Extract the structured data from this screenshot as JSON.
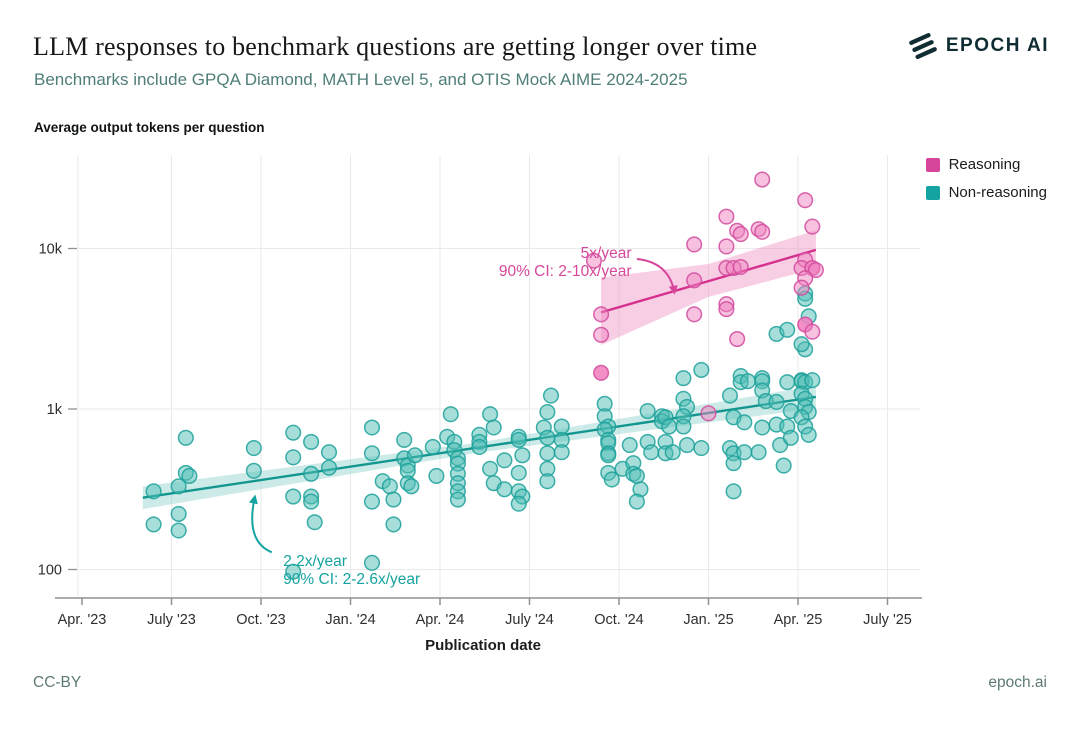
{
  "page": {
    "logo_text": "EPOCH AI",
    "footer": {
      "license": "CC-BY",
      "site": "epoch.ai"
    }
  },
  "colors": {
    "background": "#ffffff",
    "subtitle_teal": "#4f7e79",
    "grid": "#eaeaea",
    "axis": "#909090",
    "tick_text": "#2e2e2e",
    "footer_text": "#5e7a76",
    "logo_dark": "#0f2d32",
    "reasoning_pink": "#d6479b",
    "non_reasoning_teal": "#14a3a0"
  },
  "chart_data": {
    "type": "scatter",
    "title": "LLM responses to benchmark questions are getting longer over time",
    "subtitle": "Benchmarks include GPQA Diamond, MATH Level 5, and OTIS Mock AIME 2024-2025",
    "ylabel": "Average output tokens per question",
    "xlabel": "Publication date",
    "y_scale": "log",
    "grid": true,
    "legend_position": "top-right",
    "xlim": [
      2023.17,
      2025.58
    ],
    "ylim": [
      80,
      40000
    ],
    "x_ticks": [
      {
        "label": "Apr. '23",
        "value": 2023.25
      },
      {
        "label": "July '23",
        "value": 2023.5
      },
      {
        "label": "Oct. '23",
        "value": 2023.75
      },
      {
        "label": "Jan. '24",
        "value": 2024.0
      },
      {
        "label": "Apr. '24",
        "value": 2024.25
      },
      {
        "label": "July '24",
        "value": 2024.5
      },
      {
        "label": "Oct. '24",
        "value": 2024.75
      },
      {
        "label": "Jan. '25",
        "value": 2025.0
      },
      {
        "label": "Apr. '25",
        "value": 2025.25
      },
      {
        "label": "July '25",
        "value": 2025.5
      }
    ],
    "y_ticks": [
      {
        "label": "100",
        "value": 100
      },
      {
        "label": "1k",
        "value": 1000
      },
      {
        "label": "10k",
        "value": 10000
      }
    ],
    "series": [
      {
        "name": "Reasoning",
        "color": "#d6479b",
        "dot_fill": "#ef83c0",
        "dot_stroke": "#d14a9e",
        "line_color": "#d6308f",
        "band_color": "#ef92c6",
        "trend": {
          "label": "5x/year",
          "ci_label": "90% CI: 2-10x/year",
          "x": [
            2024.7,
            2025.0,
            2025.3
          ],
          "line": [
            4000,
            6260,
            9800
          ],
          "upper": [
            6600,
            8000,
            13000
          ],
          "lower": [
            2500,
            5000,
            7500
          ]
        },
        "annotation": {
          "lines": [
            "5x/year",
            "90% CI: 2-10x/year"
          ],
          "x": 2024.785,
          "y": 8700,
          "anchor": "end",
          "arrow": {
            "from": [
              2024.8,
              8600
            ],
            "ctrl": [
              2024.89,
              8200
            ],
            "to": [
              2024.905,
              5300
            ]
          }
        },
        "points": [
          [
            2024.68,
            8400
          ],
          [
            2024.7,
            3890
          ],
          [
            2024.7,
            2900
          ],
          [
            2024.7,
            1680,
            1
          ],
          [
            2024.96,
            10600
          ],
          [
            2024.96,
            6340
          ],
          [
            2024.96,
            3890
          ],
          [
            2025.0,
            940
          ],
          [
            2025.05,
            15800
          ],
          [
            2025.05,
            10300
          ],
          [
            2025.05,
            7560
          ],
          [
            2025.05,
            4500
          ],
          [
            2025.05,
            4190
          ],
          [
            2025.07,
            7560
          ],
          [
            2025.08,
            12900
          ],
          [
            2025.08,
            2730
          ],
          [
            2025.09,
            12300
          ],
          [
            2025.09,
            7670
          ],
          [
            2025.14,
            13200
          ],
          [
            2025.15,
            12700
          ],
          [
            2025.15,
            26900
          ],
          [
            2025.27,
            20000
          ],
          [
            2025.29,
            13700
          ],
          [
            2025.27,
            8500
          ],
          [
            2025.26,
            7560
          ],
          [
            2025.29,
            7560,
            1
          ],
          [
            2025.3,
            7340
          ],
          [
            2025.27,
            6530
          ],
          [
            2025.26,
            5700
          ],
          [
            2025.27,
            3360,
            1
          ],
          [
            2025.29,
            3030
          ]
        ]
      },
      {
        "name": "Non-reasoning",
        "color": "#14a3a0",
        "dot_fill": "#4fbdb5",
        "dot_stroke": "#1da19a",
        "line_color": "#12968f",
        "band_color": "#8fd2cd",
        "trend": {
          "label": "2.2x/year",
          "ci_label": "90% CI: 2-2.6x/year",
          "x": [
            2023.42,
            2024.36,
            2025.3
          ],
          "line": [
            280,
            577,
            1190
          ],
          "upper": [
            330,
            619,
            1400
          ],
          "lower": [
            238,
            537,
            1010
          ]
        },
        "annotation": {
          "lines": [
            "2.2x/year",
            "90% CI: 2-2.6x/year"
          ],
          "x": 2023.812,
          "y": 105,
          "anchor": "start",
          "arrow": {
            "from": [
              2023.78,
              128
            ],
            "ctrl": [
              2023.705,
              150
            ],
            "to": [
              2023.733,
              285
            ]
          }
        },
        "points": [
          [
            2023.45,
            307
          ],
          [
            2023.45,
            191
          ],
          [
            2023.52,
            330
          ],
          [
            2023.52,
            222
          ],
          [
            2023.52,
            175
          ],
          [
            2023.54,
            662
          ],
          [
            2023.54,
            400
          ],
          [
            2023.55,
            383
          ],
          [
            2023.73,
            571
          ],
          [
            2023.73,
            412
          ],
          [
            2023.84,
            712
          ],
          [
            2023.84,
            500
          ],
          [
            2023.84,
            285
          ],
          [
            2023.84,
            97
          ],
          [
            2023.89,
            624
          ],
          [
            2023.89,
            395
          ],
          [
            2023.89,
            285
          ],
          [
            2023.89,
            265
          ],
          [
            2023.9,
            197
          ],
          [
            2023.94,
            538
          ],
          [
            2023.94,
            431
          ],
          [
            2024.06,
            767
          ],
          [
            2024.06,
            530
          ],
          [
            2024.06,
            265
          ],
          [
            2024.06,
            110
          ],
          [
            2024.09,
            355
          ],
          [
            2024.11,
            330
          ],
          [
            2024.12,
            273
          ],
          [
            2024.12,
            191
          ],
          [
            2024.15,
            642
          ],
          [
            2024.15,
            493
          ],
          [
            2024.16,
            444
          ],
          [
            2024.16,
            412
          ],
          [
            2024.16,
            345
          ],
          [
            2024.18,
            515
          ],
          [
            2024.17,
            330
          ],
          [
            2024.23,
            580
          ],
          [
            2024.24,
            383
          ],
          [
            2024.27,
            671
          ],
          [
            2024.28,
            928
          ],
          [
            2024.29,
            624
          ],
          [
            2024.29,
            554
          ],
          [
            2024.3,
            493
          ],
          [
            2024.3,
            457
          ],
          [
            2024.3,
            395
          ],
          [
            2024.3,
            345
          ],
          [
            2024.3,
            307
          ],
          [
            2024.3,
            273
          ],
          [
            2024.36,
            691
          ],
          [
            2024.36,
            624
          ],
          [
            2024.36,
            580
          ],
          [
            2024.39,
            928
          ],
          [
            2024.4,
            767
          ],
          [
            2024.39,
            424
          ],
          [
            2024.4,
            345
          ],
          [
            2024.43,
            479
          ],
          [
            2024.43,
            316
          ],
          [
            2024.47,
            671
          ],
          [
            2024.47,
            642
          ],
          [
            2024.48,
            515
          ],
          [
            2024.47,
            400
          ],
          [
            2024.47,
            307
          ],
          [
            2024.48,
            285
          ],
          [
            2024.47,
            257
          ],
          [
            2024.56,
            1212
          ],
          [
            2024.55,
            957
          ],
          [
            2024.54,
            767
          ],
          [
            2024.55,
            662
          ],
          [
            2024.55,
            530
          ],
          [
            2024.55,
            424
          ],
          [
            2024.55,
            355
          ],
          [
            2024.59,
            778
          ],
          [
            2024.59,
            642
          ],
          [
            2024.59,
            538
          ],
          [
            2024.71,
            1077
          ],
          [
            2024.71,
            901
          ],
          [
            2024.72,
            778
          ],
          [
            2024.71,
            745
          ],
          [
            2024.72,
            642
          ],
          [
            2024.72,
            613
          ],
          [
            2024.72,
            530
          ],
          [
            2024.72,
            515
          ],
          [
            2024.72,
            400
          ],
          [
            2024.73,
            364
          ],
          [
            2024.76,
            424
          ],
          [
            2024.78,
            596
          ],
          [
            2024.79,
            460
          ],
          [
            2024.79,
            395
          ],
          [
            2024.8,
            383
          ],
          [
            2024.81,
            316
          ],
          [
            2024.8,
            265
          ],
          [
            2024.83,
            971
          ],
          [
            2024.83,
            624
          ],
          [
            2024.84,
            538
          ],
          [
            2024.87,
            901
          ],
          [
            2024.87,
            838
          ],
          [
            2024.88,
            888
          ],
          [
            2024.89,
            778
          ],
          [
            2024.88,
            624
          ],
          [
            2024.88,
            530
          ],
          [
            2024.9,
            538
          ],
          [
            2024.93,
            1557
          ],
          [
            2024.93,
            1158
          ],
          [
            2024.94,
            1031
          ],
          [
            2024.93,
            901
          ],
          [
            2024.93,
            778
          ],
          [
            2024.94,
            596
          ],
          [
            2024.98,
            1752
          ],
          [
            2024.98,
            571
          ],
          [
            2025.06,
            1212
          ],
          [
            2025.07,
            888
          ],
          [
            2025.06,
            571
          ],
          [
            2025.07,
            530
          ],
          [
            2025.07,
            460
          ],
          [
            2025.07,
            307
          ],
          [
            2025.09,
            1604
          ],
          [
            2025.09,
            1470
          ],
          [
            2025.1,
            826
          ],
          [
            2025.1,
            538
          ],
          [
            2025.11,
            1490
          ],
          [
            2025.15,
            1557
          ],
          [
            2025.15,
            1490
          ],
          [
            2025.15,
            1306
          ],
          [
            2025.16,
            1120
          ],
          [
            2025.15,
            767
          ],
          [
            2025.14,
            538
          ],
          [
            2025.19,
            2938
          ],
          [
            2025.22,
            3117
          ],
          [
            2025.19,
            1106
          ],
          [
            2025.19,
            800
          ],
          [
            2025.2,
            596
          ],
          [
            2025.21,
            444
          ],
          [
            2025.22,
            1470
          ],
          [
            2025.23,
            971
          ],
          [
            2025.22,
            778
          ],
          [
            2025.23,
            662
          ],
          [
            2025.26,
            1512
          ],
          [
            2025.26,
            1490
          ],
          [
            2025.27,
            1470
          ],
          [
            2025.29,
            1512
          ],
          [
            2025.26,
            1247
          ],
          [
            2025.27,
            1158
          ],
          [
            2025.27,
            1031
          ],
          [
            2025.28,
            957
          ],
          [
            2025.26,
            888
          ],
          [
            2025.27,
            778
          ],
          [
            2025.28,
            691
          ],
          [
            2025.27,
            5237
          ],
          [
            2025.27,
            4860
          ],
          [
            2025.28,
            3781
          ],
          [
            2025.27,
            2355
          ],
          [
            2025.26,
            2535
          ]
        ]
      }
    ]
  }
}
